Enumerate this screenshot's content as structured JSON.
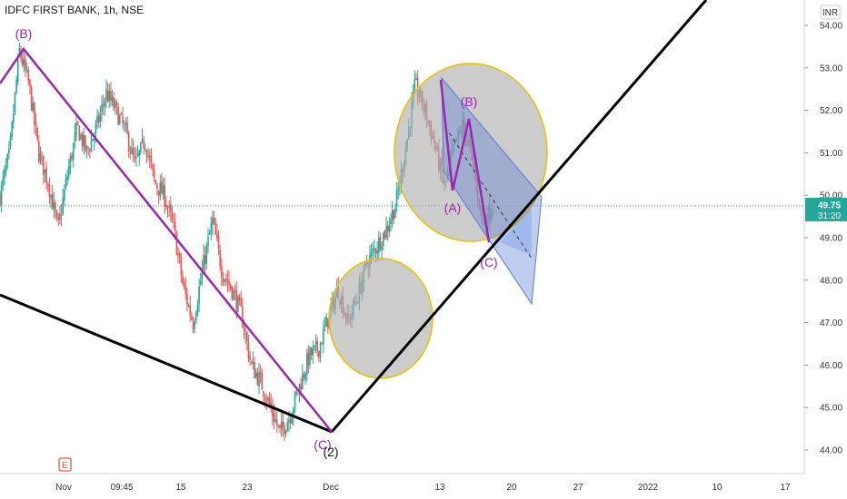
{
  "header": {
    "title": "IDFC FIRST BANK, 1h, NSE"
  },
  "axis": {
    "currency": "INR"
  },
  "price_label": {
    "value": "49.75",
    "countdown": "31:20"
  },
  "event_marker": {
    "label": "E"
  },
  "colors": {
    "up": "#26a69a",
    "down": "#ef5350",
    "wave": "#9c27b0",
    "trend": "#000000",
    "ellipse_fill": "#b0b0b0",
    "ellipse_stroke": "#e6c200",
    "channel": "#5b7bd5",
    "projection": "#9ec0f5"
  },
  "chart_data": {
    "type": "candlestick",
    "title": "IDFC FIRST BANK, 1h, NSE",
    "ylim": [
      43.6,
      54.5
    ],
    "y_ticks": [
      "54.00",
      "53.00",
      "52.00",
      "51.00",
      "50.00",
      "49.00",
      "48.00",
      "47.00",
      "46.00",
      "45.00",
      "44.00"
    ],
    "x_ticks": [
      "Nov",
      "09:45",
      "15",
      "23",
      "Dec",
      "13",
      "20",
      "27",
      "2022",
      "10",
      "17"
    ],
    "last_price": 49.75,
    "price_path": [
      50.0,
      51.0,
      53.4,
      52.6,
      51.0,
      50.3,
      49.2,
      50.5,
      51.6,
      51.0,
      51.6,
      52.4,
      52.0,
      51.5,
      50.7,
      51.3,
      50.3,
      50.0,
      49.2,
      47.8,
      47.0,
      48.3,
      49.4,
      48.2,
      47.8,
      47.2,
      46.0,
      45.6,
      45.0,
      44.4,
      44.8,
      45.5,
      46.2,
      46.4,
      47.1,
      47.8,
      47.0,
      47.6,
      48.4,
      48.8,
      49.2,
      49.8,
      51.1,
      52.6,
      52.0,
      51.2,
      50.2,
      51.1,
      51.7,
      50.7,
      49.3,
      49.75
    ],
    "waves": [
      {
        "label": "(B)",
        "price": 53.4
      },
      {
        "label": "(C)",
        "price": 44.4
      },
      {
        "label": "(2)",
        "price": 44.4
      },
      {
        "label": "(B)",
        "price": 51.7
      },
      {
        "label": "(A)",
        "price": 50.1
      },
      {
        "label": "(C)",
        "price": 48.8
      }
    ]
  }
}
